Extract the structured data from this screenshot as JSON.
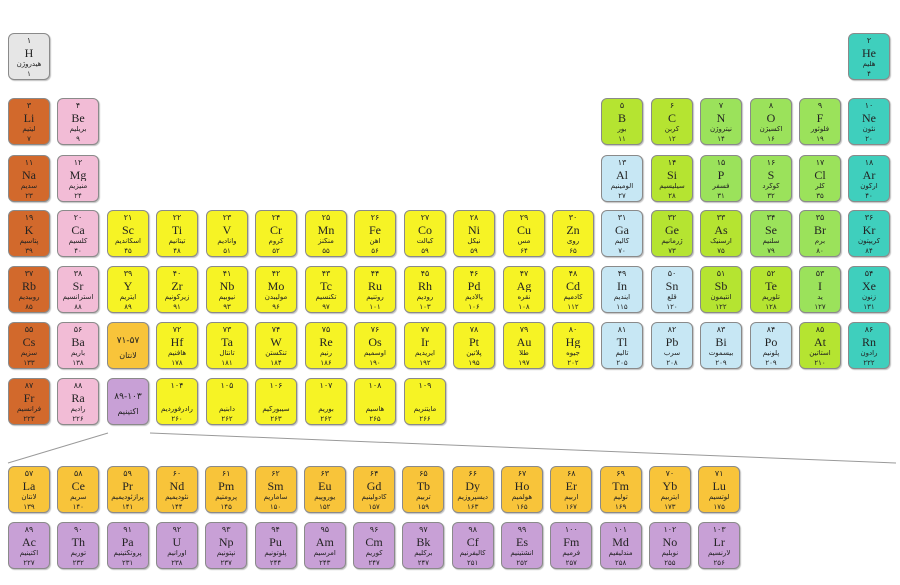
{
  "colors": {
    "alkali": "#d2692c",
    "alkaline": "#f2bcd6",
    "transition": "#f6f325",
    "lanthanide": "#f8c43a",
    "actinide": "#c8a0d6",
    "post_transition": "#c7e7f4",
    "metalloid": "#b5e431",
    "nonmetal": "#9be25b",
    "noble": "#3fcfbd",
    "unknown": "#e6e6e6"
  },
  "elements": [
    {
      "id": "H",
      "num": "۱",
      "sym": "H",
      "name": "هیدروژن",
      "mass": "۱",
      "cat": "unknown"
    },
    {
      "id": "He",
      "num": "۲",
      "sym": "He",
      "name": "هلیم",
      "mass": "۴",
      "cat": "noble"
    },
    {
      "id": "Li",
      "num": "۳",
      "sym": "Li",
      "name": "لیتیم",
      "mass": "۷",
      "cat": "alkali"
    },
    {
      "id": "Be",
      "num": "۴",
      "sym": "Be",
      "name": "بریلیم",
      "mass": "۹",
      "cat": "alkaline"
    },
    {
      "id": "B",
      "num": "۵",
      "sym": "B",
      "name": "بور",
      "mass": "۱۱",
      "cat": "metalloid"
    },
    {
      "id": "C",
      "num": "۶",
      "sym": "C",
      "name": "کربن",
      "mass": "۱۲",
      "cat": "metalloid"
    },
    {
      "id": "N",
      "num": "۷",
      "sym": "N",
      "name": "نیتروژن",
      "mass": "۱۴",
      "cat": "nonmetal"
    },
    {
      "id": "O",
      "num": "۸",
      "sym": "O",
      "name": "اکسیژن",
      "mass": "۱۶",
      "cat": "nonmetal"
    },
    {
      "id": "F",
      "num": "۹",
      "sym": "F",
      "name": "فلوئور",
      "mass": "۱۹",
      "cat": "nonmetal"
    },
    {
      "id": "Ne",
      "num": "۱۰",
      "sym": "Ne",
      "name": "نئون",
      "mass": "۲۰",
      "cat": "noble"
    },
    {
      "id": "Na",
      "num": "۱۱",
      "sym": "Na",
      "name": "سدیم",
      "mass": "۲۳",
      "cat": "alkali"
    },
    {
      "id": "Mg",
      "num": "۱۲",
      "sym": "Mg",
      "name": "منیزیم",
      "mass": "۲۴",
      "cat": "alkaline"
    },
    {
      "id": "Al",
      "num": "۱۳",
      "sym": "Al",
      "name": "آلومینیم",
      "mass": "۲۷",
      "cat": "post_transition"
    },
    {
      "id": "Si",
      "num": "۱۴",
      "sym": "Si",
      "name": "سیلیسیم",
      "mass": "۲۸",
      "cat": "metalloid"
    },
    {
      "id": "P",
      "num": "۱۵",
      "sym": "P",
      "name": "فسفر",
      "mass": "۳۱",
      "cat": "nonmetal"
    },
    {
      "id": "S",
      "num": "۱۶",
      "sym": "S",
      "name": "گوگرد",
      "mass": "۳۲",
      "cat": "nonmetal"
    },
    {
      "id": "Cl",
      "num": "۱۷",
      "sym": "Cl",
      "name": "کلر",
      "mass": "۳۵",
      "cat": "nonmetal"
    },
    {
      "id": "Ar",
      "num": "۱۸",
      "sym": "Ar",
      "name": "آرگون",
      "mass": "۴۰",
      "cat": "noble"
    },
    {
      "id": "K",
      "num": "۱۹",
      "sym": "K",
      "name": "پتاسیم",
      "mass": "۳۹",
      "cat": "alkali"
    },
    {
      "id": "Ca",
      "num": "۲۰",
      "sym": "Ca",
      "name": "کلسیم",
      "mass": "۴۰",
      "cat": "alkaline"
    },
    {
      "id": "Sc",
      "num": "۲۱",
      "sym": "Sc",
      "name": "اسکاندیم",
      "mass": "۴۵",
      "cat": "transition"
    },
    {
      "id": "Ti",
      "num": "۲۲",
      "sym": "Ti",
      "name": "تیتانیم",
      "mass": "۴۸",
      "cat": "transition"
    },
    {
      "id": "V",
      "num": "۲۳",
      "sym": "V",
      "name": "وانادیم",
      "mass": "۵۱",
      "cat": "transition"
    },
    {
      "id": "Cr",
      "num": "۲۴",
      "sym": "Cr",
      "name": "کروم",
      "mass": "۵۲",
      "cat": "transition"
    },
    {
      "id": "Mn",
      "num": "۲۵",
      "sym": "Mn",
      "name": "منگنز",
      "mass": "۵۵",
      "cat": "transition"
    },
    {
      "id": "Fe",
      "num": "۲۶",
      "sym": "Fe",
      "name": "آهن",
      "mass": "۵۶",
      "cat": "transition"
    },
    {
      "id": "Co",
      "num": "۲۷",
      "sym": "Co",
      "name": "کبالت",
      "mass": "۵۹",
      "cat": "transition"
    },
    {
      "id": "Ni",
      "num": "۲۸",
      "sym": "Ni",
      "name": "نیکل",
      "mass": "۵۹",
      "cat": "transition"
    },
    {
      "id": "Cu",
      "num": "۲۹",
      "sym": "Cu",
      "name": "مس",
      "mass": "۶۴",
      "cat": "transition"
    },
    {
      "id": "Zn",
      "num": "۳۰",
      "sym": "Zn",
      "name": "روی",
      "mass": "۶۵",
      "cat": "transition"
    },
    {
      "id": "Ga",
      "num": "۳۱",
      "sym": "Ga",
      "name": "گالیم",
      "mass": "۷۰",
      "cat": "post_transition"
    },
    {
      "id": "Ge",
      "num": "۳۲",
      "sym": "Ge",
      "name": "ژرمانیم",
      "mass": "۷۳",
      "cat": "metalloid"
    },
    {
      "id": "As",
      "num": "۳۳",
      "sym": "As",
      "name": "آرسنیک",
      "mass": "۷۵",
      "cat": "metalloid"
    },
    {
      "id": "Se",
      "num": "۳۴",
      "sym": "Se",
      "name": "سلنیم",
      "mass": "۷۹",
      "cat": "nonmetal"
    },
    {
      "id": "Br",
      "num": "۳۵",
      "sym": "Br",
      "name": "برم",
      "mass": "۸۰",
      "cat": "nonmetal"
    },
    {
      "id": "Kr",
      "num": "۳۶",
      "sym": "Kr",
      "name": "کریپتون",
      "mass": "۸۴",
      "cat": "noble"
    },
    {
      "id": "Rb",
      "num": "۳۷",
      "sym": "Rb",
      "name": "روبیدیم",
      "mass": "۸۵",
      "cat": "alkali"
    },
    {
      "id": "Sr",
      "num": "۳۸",
      "sym": "Sr",
      "name": "استرانسیم",
      "mass": "۸۸",
      "cat": "alkaline"
    },
    {
      "id": "Y",
      "num": "۳۹",
      "sym": "Y",
      "name": "ایتریم",
      "mass": "۸۹",
      "cat": "transition"
    },
    {
      "id": "Zr",
      "num": "۴۰",
      "sym": "Zr",
      "name": "زیرکونیم",
      "mass": "۹۱",
      "cat": "transition"
    },
    {
      "id": "Nb",
      "num": "۴۱",
      "sym": "Nb",
      "name": "نیوبیم",
      "mass": "۹۳",
      "cat": "transition"
    },
    {
      "id": "Mo",
      "num": "۴۲",
      "sym": "Mo",
      "name": "مولیبدن",
      "mass": "۹۶",
      "cat": "transition"
    },
    {
      "id": "Tc",
      "num": "۴۳",
      "sym": "Tc",
      "name": "تکنسیم",
      "mass": "۹۷",
      "cat": "transition"
    },
    {
      "id": "Ru",
      "num": "۴۴",
      "sym": "Ru",
      "name": "روتنیم",
      "mass": "۱۰۱",
      "cat": "transition"
    },
    {
      "id": "Rh",
      "num": "۴۵",
      "sym": "Rh",
      "name": "رودیم",
      "mass": "۱۰۳",
      "cat": "transition"
    },
    {
      "id": "Pd",
      "num": "۴۶",
      "sym": "Pd",
      "name": "پالادیم",
      "mass": "۱۰۶",
      "cat": "transition"
    },
    {
      "id": "Ag",
      "num": "۴۷",
      "sym": "Ag",
      "name": "نقره",
      "mass": "۱۰۸",
      "cat": "transition"
    },
    {
      "id": "Cd",
      "num": "۴۸",
      "sym": "Cd",
      "name": "کادمیم",
      "mass": "۱۱۲",
      "cat": "transition"
    },
    {
      "id": "In",
      "num": "۴۹",
      "sym": "In",
      "name": "ایندیم",
      "mass": "۱۱۵",
      "cat": "post_transition"
    },
    {
      "id": "Sn",
      "num": "۵۰",
      "sym": "Sn",
      "name": "قلع",
      "mass": "۱۲۰",
      "cat": "post_transition"
    },
    {
      "id": "Sb",
      "num": "۵۱",
      "sym": "Sb",
      "name": "آنتیمون",
      "mass": "۱۲۲",
      "cat": "metalloid"
    },
    {
      "id": "Te",
      "num": "۵۲",
      "sym": "Te",
      "name": "تلوریم",
      "mass": "۱۲۸",
      "cat": "metalloid"
    },
    {
      "id": "I",
      "num": "۵۳",
      "sym": "I",
      "name": "ید",
      "mass": "۱۲۷",
      "cat": "nonmetal"
    },
    {
      "id": "Xe",
      "num": "۵۴",
      "sym": "Xe",
      "name": "زنون",
      "mass": "۱۳۱",
      "cat": "noble"
    },
    {
      "id": "Cs",
      "num": "۵۵",
      "sym": "Cs",
      "name": "سزیم",
      "mass": "۱۳۳",
      "cat": "alkali"
    },
    {
      "id": "Ba",
      "num": "۵۶",
      "sym": "Ba",
      "name": "باریم",
      "mass": "۱۳۸",
      "cat": "alkaline"
    },
    {
      "id": "La-range",
      "num": "۷۱-۵۷",
      "sym": "",
      "name": "لانتان",
      "mass": "",
      "cat": "lanthanide",
      "range": true
    },
    {
      "id": "Hf",
      "num": "۷۲",
      "sym": "Hf",
      "name": "هافنیم",
      "mass": "۱۷۸",
      "cat": "transition"
    },
    {
      "id": "Ta",
      "num": "۷۳",
      "sym": "Ta",
      "name": "تانتال",
      "mass": "۱۸۱",
      "cat": "transition"
    },
    {
      "id": "W",
      "num": "۷۴",
      "sym": "W",
      "name": "تنگستن",
      "mass": "۱۸۴",
      "cat": "transition"
    },
    {
      "id": "Re",
      "num": "۷۵",
      "sym": "Re",
      "name": "رنیم",
      "mass": "۱۸۶",
      "cat": "transition"
    },
    {
      "id": "Os",
      "num": "۷۶",
      "sym": "Os",
      "name": "اوسمیم",
      "mass": "۱۹۰",
      "cat": "transition"
    },
    {
      "id": "Ir",
      "num": "۷۷",
      "sym": "Ir",
      "name": "ایریدیم",
      "mass": "۱۹۲",
      "cat": "transition"
    },
    {
      "id": "Pt",
      "num": "۷۸",
      "sym": "Pt",
      "name": "پلاتین",
      "mass": "۱۹۵",
      "cat": "transition"
    },
    {
      "id": "Au",
      "num": "۷۹",
      "sym": "Au",
      "name": "طلا",
      "mass": "۱۹۷",
      "cat": "transition"
    },
    {
      "id": "Hg",
      "num": "۸۰",
      "sym": "Hg",
      "name": "جیوه",
      "mass": "۲۰۲",
      "cat": "transition"
    },
    {
      "id": "Tl",
      "num": "۸۱",
      "sym": "Tl",
      "name": "تالیم",
      "mass": "۲۰۵",
      "cat": "post_transition"
    },
    {
      "id": "Pb",
      "num": "۸۲",
      "sym": "Pb",
      "name": "سرب",
      "mass": "۲۰۸",
      "cat": "post_transition"
    },
    {
      "id": "Bi",
      "num": "۸۳",
      "sym": "Bi",
      "name": "بیسموت",
      "mass": "۲۰۹",
      "cat": "post_transition"
    },
    {
      "id": "Po",
      "num": "۸۴",
      "sym": "Po",
      "name": "پلونیم",
      "mass": "۲۰۹",
      "cat": "post_transition"
    },
    {
      "id": "At",
      "num": "۸۵",
      "sym": "At",
      "name": "استاتین",
      "mass": "۲۱۰",
      "cat": "metalloid"
    },
    {
      "id": "Rn",
      "num": "۸۶",
      "sym": "Rn",
      "name": "رادون",
      "mass": "۲۲۲",
      "cat": "noble"
    },
    {
      "id": "Fr",
      "num": "۸۷",
      "sym": "Fr",
      "name": "فرانسیم",
      "mass": "۲۲۳",
      "cat": "alkali"
    },
    {
      "id": "Ra",
      "num": "۸۸",
      "sym": "Ra",
      "name": "رادیم",
      "mass": "۲۲۶",
      "cat": "alkaline"
    },
    {
      "id": "Ac-range",
      "num": "۸۹-۱۰۳",
      "sym": "",
      "name": "اکتینیم",
      "mass": "",
      "cat": "actinide",
      "range": true
    },
    {
      "id": "Rf",
      "num": "۱۰۴",
      "sym": "",
      "name": "رادرفوردیم",
      "mass": "۲۶۰",
      "cat": "transition"
    },
    {
      "id": "Db",
      "num": "۱۰۵",
      "sym": "",
      "name": "دابنیم",
      "mass": "۲۶۲",
      "cat": "transition"
    },
    {
      "id": "Sg",
      "num": "۱۰۶",
      "sym": "",
      "name": "سیبورگیم",
      "mass": "۲۶۳",
      "cat": "transition"
    },
    {
      "id": "Bh",
      "num": "۱۰۷",
      "sym": "",
      "name": "بوریم",
      "mass": "۲۶۲",
      "cat": "transition"
    },
    {
      "id": "Hs",
      "num": "۱۰۸",
      "sym": "",
      "name": "هاسیم",
      "mass": "۲۶۵",
      "cat": "transition"
    },
    {
      "id": "Mt",
      "num": "۱۰۹",
      "sym": "",
      "name": "مایتنریم",
      "mass": "۲۶۶",
      "cat": "transition"
    },
    {
      "id": "La",
      "num": "۵۷",
      "sym": "La",
      "name": "لانتان",
      "mass": "۱۳۹",
      "cat": "lanthanide"
    },
    {
      "id": "Ce",
      "num": "۵۸",
      "sym": "Ce",
      "name": "سریم",
      "mass": "۱۴۰",
      "cat": "lanthanide"
    },
    {
      "id": "Pr",
      "num": "۵۹",
      "sym": "Pr",
      "name": "پرازئودیمیم",
      "mass": "۱۴۱",
      "cat": "lanthanide"
    },
    {
      "id": "Nd",
      "num": "۶۰",
      "sym": "Nd",
      "name": "نئودیمیم",
      "mass": "۱۴۴",
      "cat": "lanthanide"
    },
    {
      "id": "Pm",
      "num": "۶۱",
      "sym": "Pm",
      "name": "پرومتیم",
      "mass": "۱۴۵",
      "cat": "lanthanide"
    },
    {
      "id": "Sm",
      "num": "۶۲",
      "sym": "Sm",
      "name": "ساماریم",
      "mass": "۱۵۰",
      "cat": "lanthanide"
    },
    {
      "id": "Eu",
      "num": "۶۳",
      "sym": "Eu",
      "name": "یوروپیم",
      "mass": "۱۵۲",
      "cat": "lanthanide"
    },
    {
      "id": "Gd",
      "num": "۶۴",
      "sym": "Gd",
      "name": "گادولینیم",
      "mass": "۱۵۷",
      "cat": "lanthanide"
    },
    {
      "id": "Tb",
      "num": "۶۵",
      "sym": "Tb",
      "name": "تربیم",
      "mass": "۱۵۹",
      "cat": "lanthanide"
    },
    {
      "id": "Dy",
      "num": "۶۶",
      "sym": "Dy",
      "name": "دیسپروزیم",
      "mass": "۱۶۳",
      "cat": "lanthanide"
    },
    {
      "id": "Ho",
      "num": "۶۷",
      "sym": "Ho",
      "name": "هولمیم",
      "mass": "۱۶۵",
      "cat": "lanthanide"
    },
    {
      "id": "Er",
      "num": "۶۸",
      "sym": "Er",
      "name": "اربیم",
      "mass": "۱۶۷",
      "cat": "lanthanide"
    },
    {
      "id": "Tm",
      "num": "۶۹",
      "sym": "Tm",
      "name": "تولیم",
      "mass": "۱۶۹",
      "cat": "lanthanide"
    },
    {
      "id": "Yb",
      "num": "۷۰",
      "sym": "Yb",
      "name": "ایتربیم",
      "mass": "۱۷۳",
      "cat": "lanthanide"
    },
    {
      "id": "Lu",
      "num": "۷۱",
      "sym": "Lu",
      "name": "لوتسیم",
      "mass": "۱۷۵",
      "cat": "lanthanide"
    },
    {
      "id": "Ac",
      "num": "۸۹",
      "sym": "Ac",
      "name": "اکتینیم",
      "mass": "۲۲۷",
      "cat": "actinide"
    },
    {
      "id": "Th",
      "num": "۹۰",
      "sym": "Th",
      "name": "توریم",
      "mass": "۲۳۲",
      "cat": "actinide"
    },
    {
      "id": "Pa",
      "num": "۹۱",
      "sym": "Pa",
      "name": "پروتکتینیم",
      "mass": "۲۳۱",
      "cat": "actinide"
    },
    {
      "id": "U",
      "num": "۹۲",
      "sym": "U",
      "name": "اورانیم",
      "mass": "۲۳۸",
      "cat": "actinide"
    },
    {
      "id": "Np",
      "num": "۹۳",
      "sym": "Np",
      "name": "نپتونیم",
      "mass": "۲۳۷",
      "cat": "actinide"
    },
    {
      "id": "Pu",
      "num": "۹۴",
      "sym": "Pu",
      "name": "پلوتونیم",
      "mass": "۲۴۴",
      "cat": "actinide"
    },
    {
      "id": "Am",
      "num": "۹۵",
      "sym": "Am",
      "name": "امرسیم",
      "mass": "۲۴۳",
      "cat": "actinide"
    },
    {
      "id": "Cm",
      "num": "۹۶",
      "sym": "Cm",
      "name": "کوریم",
      "mass": "۲۴۷",
      "cat": "actinide"
    },
    {
      "id": "Bk",
      "num": "۹۷",
      "sym": "Bk",
      "name": "برکلیم",
      "mass": "۲۴۷",
      "cat": "actinide"
    },
    {
      "id": "Cf",
      "num": "۹۸",
      "sym": "Cf",
      "name": "کالیفرنیم",
      "mass": "۲۵۱",
      "cat": "actinide"
    },
    {
      "id": "Es",
      "num": "۹۹",
      "sym": "Es",
      "name": "انشتینیم",
      "mass": "۲۵۲",
      "cat": "actinide"
    },
    {
      "id": "Fm",
      "num": "۱۰۰",
      "sym": "Fm",
      "name": "فرمیم",
      "mass": "۲۵۷",
      "cat": "actinide"
    },
    {
      "id": "Md",
      "num": "۱۰۱",
      "sym": "Md",
      "name": "مندلیفیم",
      "mass": "۲۵۸",
      "cat": "actinide"
    },
    {
      "id": "No",
      "num": "۱۰۲",
      "sym": "No",
      "name": "نوبلیم",
      "mass": "۲۵۵",
      "cat": "actinide"
    },
    {
      "id": "Lr",
      "num": "۱۰۳",
      "sym": "Lr",
      "name": "لارنسیم",
      "mass": "۲۵۶",
      "cat": "actinide"
    }
  ]
}
